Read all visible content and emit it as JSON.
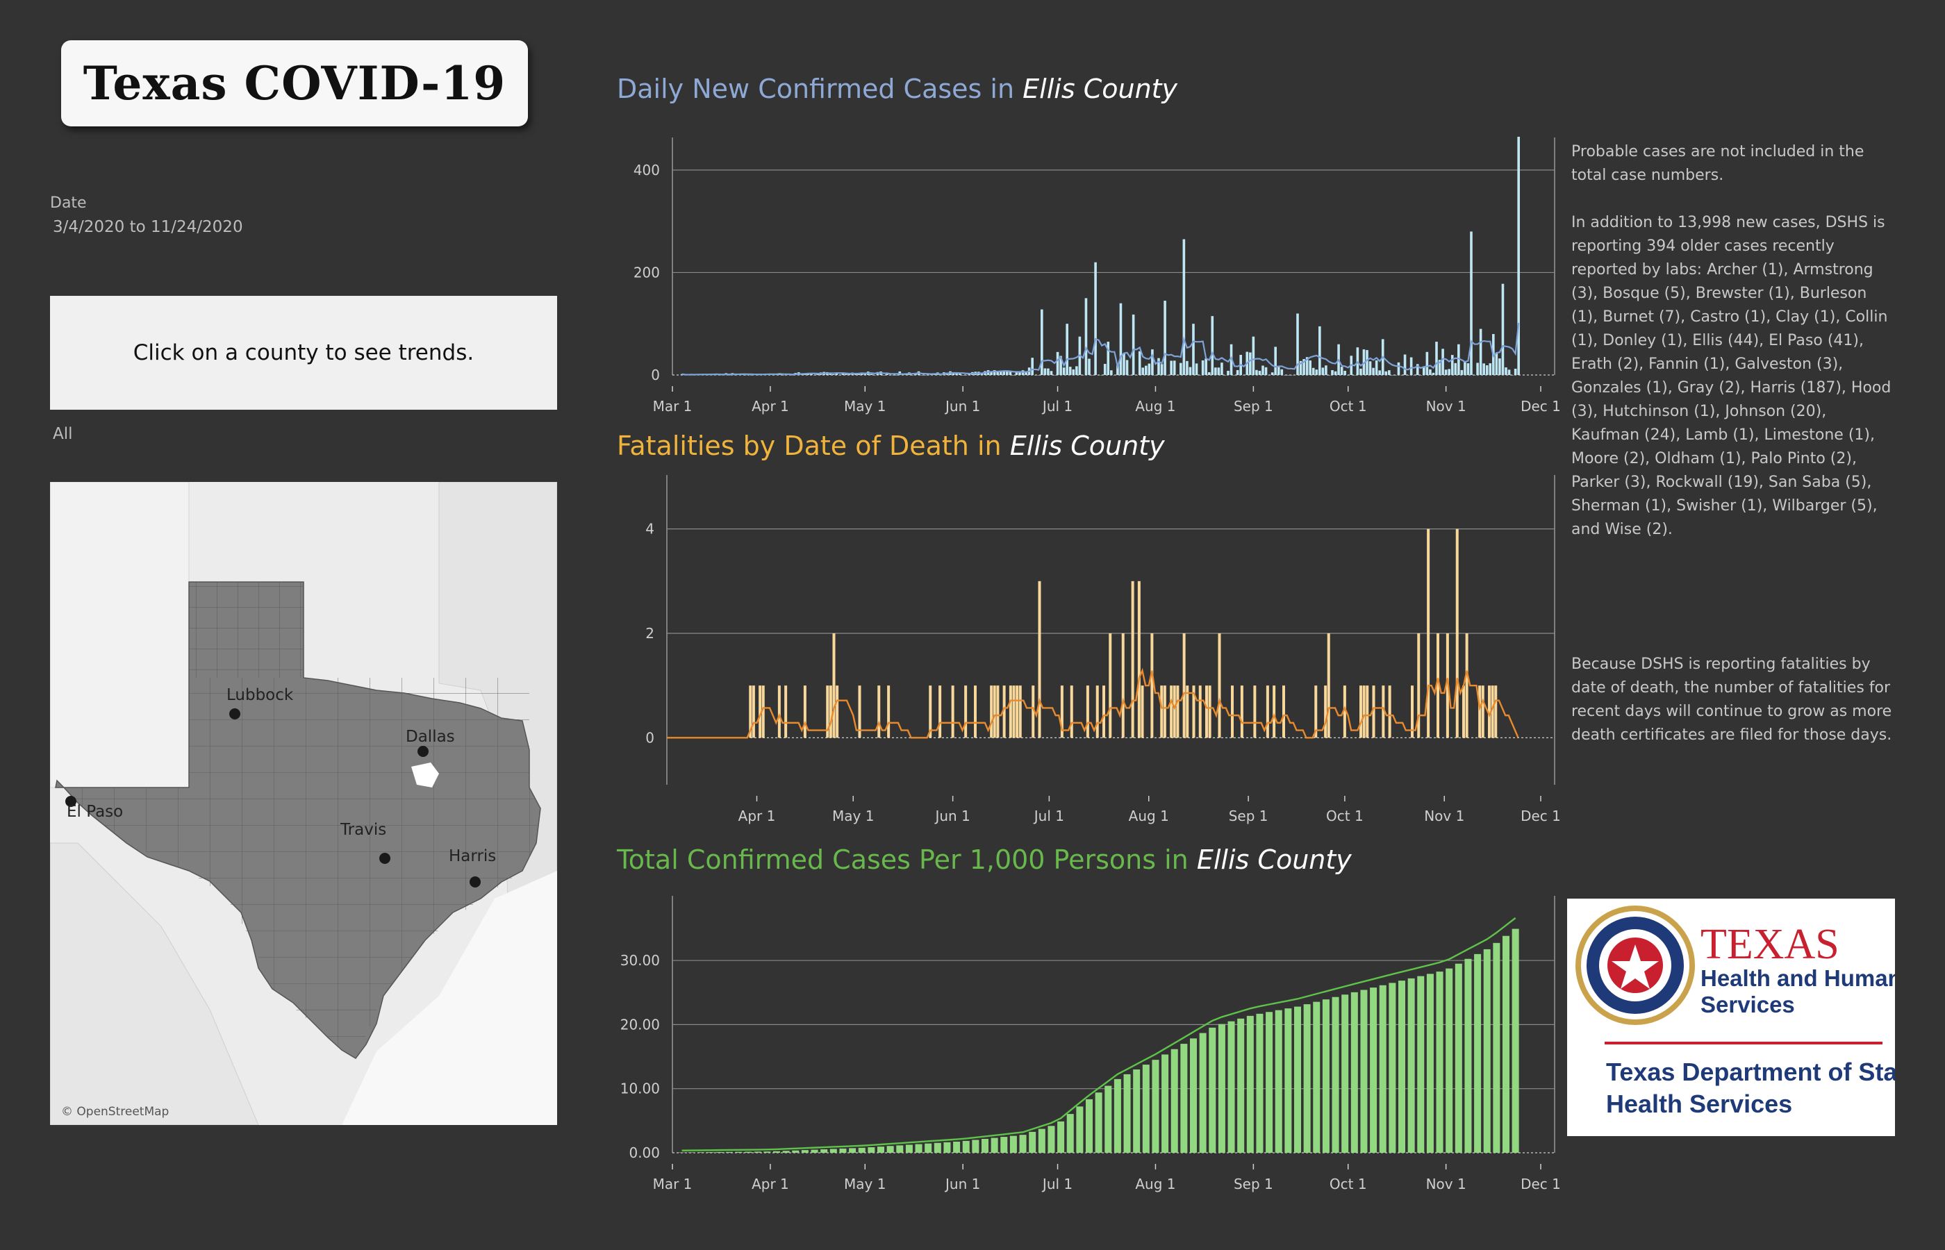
{
  "dashboard": {
    "title": "Texas COVID-19"
  },
  "filters": {
    "date_label": "Date",
    "date_range": "3/4/2020 to 11/24/2020",
    "county_prompt": "Click on a county to see trends.",
    "county_filter": "All"
  },
  "map": {
    "labels": [
      "Lubbock",
      "Dallas",
      "El Paso",
      "Travis",
      "Harris"
    ],
    "credit": "© OpenStreetMap"
  },
  "charts": {
    "cases": {
      "title_prefix": "Daily New Confirmed Cases in ",
      "county": "Ellis County"
    },
    "fatalities": {
      "title_prefix": "Fatalities by Date of Death in ",
      "county": "Ellis County"
    },
    "total": {
      "title_prefix": "Total Confirmed Cases Per 1,000 Persons in ",
      "county": "Ellis County"
    }
  },
  "colors": {
    "cases_title": "#8fa9d6",
    "cases_bar": "#bfe6f3",
    "cases_avg": "#7da3d9",
    "fatal_title": "#f0b43c",
    "fatal_bar": "#f8d89a",
    "fatal_avg": "#e88a2e",
    "total_title": "#68b84c",
    "total_bar": "#92d880",
    "total_line": "#5fc24a",
    "grid": "#8a8a8a",
    "county_title": "#ffffff"
  },
  "notes": {
    "note1": "Probable cases are not included in the total case numbers.",
    "note1b": "In addition to 13,998 new cases, DSHS is reporting 394 older cases recently reported by labs: Archer (1), Armstrong (3), Bosque (5), Brewster (1), Burleson (1), Burnet (7), Castro (1), Clay (1), Collin (1), Donley (1), Ellis (44), El Paso (41), Erath (2), Fannin (1), Galveston (3), Gonzales (1), Gray (2), Harris (187), Hood (3), Hutchinson (1), Johnson (20), Kaufman (24), Lamb (1), Limestone (1), Moore (2), Oldham (1), Palo Pinto (2), Parker (3), Rockwall (19), San Saba (5), Sherman (1), Swisher (1), Wilbarger (5), and Wise (2).",
    "note2": "Because DSHS is reporting fatalities by date of death, the number of fatalities for recent days will continue to grow as more death certificates are filed for those days."
  },
  "logo": {
    "line1": "TEXAS",
    "line2": "Health and Human",
    "line3": "Services",
    "line4": "Texas Department of State",
    "line5": "Health Services"
  },
  "chart_data": [
    {
      "type": "bar",
      "title": "Daily New Confirmed Cases in Ellis County",
      "x_ticks": [
        "Mar 1",
        "Apr 1",
        "May 1",
        "Jun 1",
        "Jul 1",
        "Aug 1",
        "Sep 1",
        "Oct 1",
        "Nov 1",
        "Dec 1"
      ],
      "ylim": [
        0,
        450
      ],
      "y_ticks": [
        0,
        200,
        400
      ],
      "x_range": [
        "2020-03-01",
        "2020-12-01"
      ],
      "series": [
        {
          "values": [
            [
              "2020-06-26",
              128
            ],
            [
              "2020-07-04",
              100
            ],
            [
              "2020-07-08",
              75
            ],
            [
              "2020-07-10",
              150
            ],
            [
              "2020-07-13",
              220
            ],
            [
              "2020-07-17",
              65
            ],
            [
              "2020-07-21",
              140
            ],
            [
              "2020-07-25",
              118
            ],
            [
              "2020-07-31",
              50
            ],
            [
              "2020-08-04",
              145
            ],
            [
              "2020-08-10",
              265
            ],
            [
              "2020-08-13",
              100
            ],
            [
              "2020-08-19",
              115
            ],
            [
              "2020-08-25",
              60
            ],
            [
              "2020-09-01",
              75
            ],
            [
              "2020-09-08",
              55
            ],
            [
              "2020-09-15",
              120
            ],
            [
              "2020-09-22",
              95
            ],
            [
              "2020-09-28",
              60
            ],
            [
              "2020-10-06",
              50
            ],
            [
              "2020-10-12",
              70
            ],
            [
              "2020-10-19",
              40
            ],
            [
              "2020-10-26",
              45
            ],
            [
              "2020-10-29",
              65
            ],
            [
              "2020-11-05",
              60
            ],
            [
              "2020-11-09",
              280
            ],
            [
              "2020-11-12",
              90
            ],
            [
              "2020-11-16",
              80
            ],
            [
              "2020-11-19",
              178
            ],
            [
              "2020-11-24",
              465
            ]
          ]
        }
      ]
    },
    {
      "type": "bar",
      "title": "Fatalities by Date of Death in Ellis County",
      "x_ticks": [
        "Apr 1",
        "May 1",
        "Jun 1",
        "Jul 1",
        "Aug 1",
        "Sep 1",
        "Oct 1",
        "Nov 1",
        "Dec 1"
      ],
      "ylim": [
        -0.9,
        4.9
      ],
      "y_ticks": [
        0,
        2,
        4
      ],
      "x_range": [
        "2020-03-04",
        "2020-12-01"
      ],
      "series": [
        {
          "values": [
            [
              "2020-03-31",
              1
            ],
            [
              "2020-04-08",
              1
            ],
            [
              "2020-04-16",
              1
            ],
            [
              "2020-04-25",
              2
            ],
            [
              "2020-05-03",
              1
            ],
            [
              "2020-05-12",
              1
            ],
            [
              "2020-05-25",
              1
            ],
            [
              "2020-06-05",
              1
            ],
            [
              "2020-06-14",
              1
            ],
            [
              "2020-06-22",
              1
            ],
            [
              "2020-06-28",
              3
            ],
            [
              "2020-07-05",
              1
            ],
            [
              "2020-07-13",
              1
            ],
            [
              "2020-07-20",
              2
            ],
            [
              "2020-07-24",
              2
            ],
            [
              "2020-07-27",
              3
            ],
            [
              "2020-07-29",
              3
            ],
            [
              "2020-08-02",
              2
            ],
            [
              "2020-08-05",
              1
            ],
            [
              "2020-08-12",
              2
            ],
            [
              "2020-08-15",
              1
            ],
            [
              "2020-08-23",
              2
            ],
            [
              "2020-09-03",
              1
            ],
            [
              "2020-09-12",
              1
            ],
            [
              "2020-09-26",
              2
            ],
            [
              "2020-10-06",
              1
            ],
            [
              "2020-10-15",
              1
            ],
            [
              "2020-10-24",
              2
            ],
            [
              "2020-10-27",
              4
            ],
            [
              "2020-10-30",
              2
            ],
            [
              "2020-11-02",
              2
            ],
            [
              "2020-11-05",
              4
            ],
            [
              "2020-11-08",
              2
            ],
            [
              "2020-11-12",
              1
            ],
            [
              "2020-11-15",
              1
            ]
          ]
        }
      ]
    },
    {
      "type": "bar",
      "title": "Total Confirmed Cases Per 1,000 Persons in Ellis County",
      "x_ticks": [
        "Mar 1",
        "Apr 1",
        "May 1",
        "Jun 1",
        "Jul 1",
        "Aug 1",
        "Sep 1",
        "Oct 1",
        "Nov 1",
        "Dec 1"
      ],
      "ylim": [
        0,
        39
      ],
      "y_ticks": [
        "0.00",
        "10.00",
        "20.00",
        "30.00"
      ],
      "x_range": [
        "2020-03-01",
        "2020-12-01"
      ],
      "series": [
        {
          "values": [
            [
              "2020-03-04",
              0.05
            ],
            [
              "2020-04-01",
              0.2
            ],
            [
              "2020-05-01",
              0.8
            ],
            [
              "2020-06-01",
              1.8
            ],
            [
              "2020-06-20",
              2.8
            ],
            [
              "2020-07-01",
              4.5
            ],
            [
              "2020-07-10",
              8
            ],
            [
              "2020-07-20",
              11.5
            ],
            [
              "2020-08-01",
              14.5
            ],
            [
              "2020-08-10",
              17
            ],
            [
              "2020-08-20",
              19.8
            ],
            [
              "2020-09-01",
              21.5
            ],
            [
              "2020-09-15",
              22.8
            ],
            [
              "2020-10-01",
              24.8
            ],
            [
              "2020-10-15",
              26.5
            ],
            [
              "2020-11-01",
              28.5
            ],
            [
              "2020-11-15",
              32
            ],
            [
              "2020-11-24",
              35.3
            ]
          ]
        }
      ]
    }
  ]
}
